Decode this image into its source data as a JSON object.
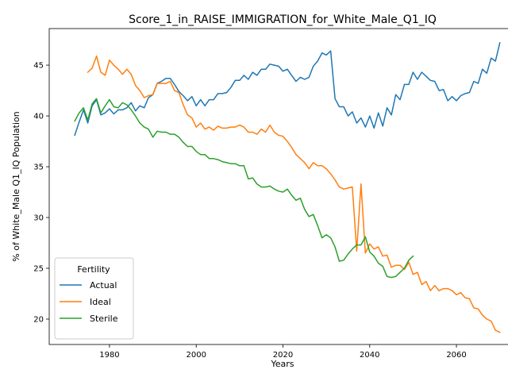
{
  "chart_data": {
    "type": "line",
    "title": "Score_1_in_RAISE_IMMIGRATION_for_White_Male_Q1_IQ",
    "xlabel": "Years",
    "ylabel": "% of White_Male Q1_IQ Population",
    "xlim": [
      1966.1,
      2073.9
    ],
    "ylim": [
      17.5,
      48.6
    ],
    "xticks": [
      1980,
      2000,
      2020,
      2040,
      2060
    ],
    "yticks": [
      20,
      25,
      30,
      35,
      40,
      45
    ],
    "grid": false,
    "legend": {
      "title": "Fertility",
      "placement": "lower-left"
    },
    "series": [
      {
        "name": "Actual",
        "color": "#1f77b4",
        "x": [
          1972,
          1973,
          1974,
          1975,
          1976,
          1977,
          1978,
          1979,
          1980,
          1981,
          1982,
          1983,
          1984,
          1985,
          1986,
          1987,
          1988,
          1989,
          1990,
          1991,
          1992,
          1993,
          1994,
          1995,
          1996,
          1997,
          1998,
          1999,
          2000,
          2001,
          2002,
          2003,
          2004,
          2005,
          2006,
          2007,
          2008,
          2009,
          2010,
          2011,
          2012,
          2013,
          2014,
          2015,
          2016,
          2017,
          2018,
          2019,
          2020,
          2021,
          2022,
          2023,
          2024,
          2025,
          2026,
          2027,
          2028,
          2029,
          2030,
          2031,
          2032,
          2033,
          2034,
          2035,
          2036,
          2037,
          2038,
          2039,
          2040,
          2041,
          2042,
          2043,
          2044,
          2045,
          2046,
          2047,
          2048,
          2049,
          2050,
          2051,
          2052,
          2053,
          2054,
          2055,
          2056,
          2057,
          2058,
          2059,
          2060,
          2061,
          2062,
          2063,
          2064,
          2065,
          2066,
          2067,
          2068,
          2069,
          2070
        ],
        "values": [
          38.1,
          39.4,
          40.6,
          39.3,
          41.0,
          41.6,
          40.1,
          40.3,
          40.7,
          40.2,
          40.6,
          40.6,
          40.8,
          41.3,
          40.5,
          41.0,
          40.8,
          41.8,
          42.1,
          43.2,
          43.4,
          43.7,
          43.7,
          43.1,
          42.4,
          42.0,
          41.5,
          41.9,
          41.0,
          41.6,
          41.0,
          41.6,
          41.6,
          42.2,
          42.2,
          42.3,
          42.8,
          43.5,
          43.5,
          44.0,
          43.6,
          44.3,
          44.0,
          44.6,
          44.6,
          45.1,
          45.0,
          44.9,
          44.4,
          44.6,
          44.0,
          43.4,
          43.8,
          43.6,
          43.8,
          44.9,
          45.4,
          46.2,
          46.0,
          46.4,
          41.7,
          40.9,
          40.9,
          40.0,
          40.4,
          39.3,
          39.8,
          38.9,
          40.0,
          38.8,
          40.3,
          39.0,
          40.8,
          40.1,
          42.1,
          41.6,
          43.1,
          43.1,
          44.3,
          43.6,
          44.3,
          43.9,
          43.5,
          43.4,
          42.5,
          42.6,
          41.5,
          41.9,
          41.5,
          42.0,
          42.2,
          42.3,
          43.4,
          43.2,
          44.6,
          44.2,
          45.7,
          45.4,
          47.2
        ]
      },
      {
        "name": "Ideal",
        "color": "#ff7f0e",
        "x": [
          1975,
          1976,
          1977,
          1978,
          1979,
          1980,
          1981,
          1982,
          1983,
          1984,
          1985,
          1986,
          1987,
          1988,
          1989,
          1990,
          1991,
          1992,
          1993,
          1994,
          1995,
          1996,
          1997,
          1998,
          1999,
          2000,
          2001,
          2002,
          2003,
          2004,
          2005,
          2006,
          2007,
          2008,
          2009,
          2010,
          2011,
          2012,
          2013,
          2014,
          2015,
          2016,
          2017,
          2018,
          2019,
          2020,
          2021,
          2022,
          2023,
          2024,
          2025,
          2026,
          2027,
          2028,
          2029,
          2030,
          2031,
          2032,
          2033,
          2034,
          2035,
          2036,
          2037,
          2038,
          2039,
          2040,
          2041,
          2042,
          2043,
          2044,
          2045,
          2046,
          2047,
          2048,
          2049,
          2050,
          2051,
          2052,
          2053,
          2054,
          2055,
          2056,
          2057,
          2058,
          2059,
          2060,
          2061,
          2062,
          2063,
          2064,
          2065,
          2066,
          2067,
          2068,
          2069,
          2070
        ],
        "values": [
          44.3,
          44.7,
          45.9,
          44.3,
          44.0,
          45.5,
          45.0,
          44.6,
          44.1,
          44.6,
          44.1,
          43.0,
          42.5,
          41.8,
          42.0,
          42.1,
          43.2,
          43.2,
          43.2,
          43.4,
          42.5,
          42.3,
          41.1,
          40.1,
          39.8,
          38.9,
          39.3,
          38.7,
          38.9,
          38.6,
          39.0,
          38.8,
          38.8,
          38.9,
          38.9,
          39.1,
          38.9,
          38.4,
          38.4,
          38.2,
          38.7,
          38.4,
          39.1,
          38.4,
          38.1,
          38.0,
          37.5,
          36.9,
          36.2,
          35.8,
          35.4,
          34.8,
          35.4,
          35.1,
          35.1,
          34.8,
          34.3,
          33.7,
          33.0,
          32.8,
          32.9,
          33.0,
          26.7,
          33.3,
          26.5,
          27.4,
          26.9,
          27.1,
          26.2,
          26.3,
          25.1,
          25.3,
          25.3,
          24.9,
          25.6,
          24.4,
          24.6,
          23.4,
          23.7,
          22.8,
          23.3,
          22.8,
          23.0,
          23.0,
          22.8,
          22.4,
          22.6,
          22.1,
          22.0,
          21.1,
          21.0,
          20.4,
          20.0,
          19.8,
          18.9,
          18.7
        ]
      },
      {
        "name": "Sterile",
        "color": "#2ca02c",
        "x": [
          1972,
          1973,
          1974,
          1975,
          1976,
          1977,
          1978,
          1979,
          1980,
          1981,
          1982,
          1983,
          1984,
          1985,
          1986,
          1987,
          1988,
          1989,
          1990,
          1991,
          1992,
          1993,
          1994,
          1995,
          1996,
          1997,
          1998,
          1999,
          2000,
          2001,
          2002,
          2003,
          2004,
          2005,
          2006,
          2007,
          2008,
          2009,
          2010,
          2011,
          2012,
          2013,
          2014,
          2015,
          2016,
          2017,
          2018,
          2019,
          2020,
          2021,
          2022,
          2023,
          2024,
          2025,
          2026,
          2027,
          2028,
          2029,
          2030,
          2031,
          2032,
          2033,
          2034,
          2035,
          2036,
          2037,
          2038,
          2039,
          2040,
          2041,
          2042,
          2043,
          2044,
          2045,
          2046,
          2047,
          2048,
          2049,
          2050
        ],
        "values": [
          39.5,
          40.3,
          40.8,
          39.6,
          41.2,
          41.7,
          40.3,
          41.0,
          41.6,
          40.9,
          40.8,
          41.3,
          41.1,
          40.6,
          40.0,
          39.3,
          38.9,
          38.7,
          37.9,
          38.5,
          38.4,
          38.4,
          38.2,
          38.2,
          37.9,
          37.4,
          37.0,
          37.0,
          36.5,
          36.2,
          36.2,
          35.8,
          35.8,
          35.7,
          35.5,
          35.4,
          35.3,
          35.3,
          35.1,
          35.1,
          33.8,
          33.9,
          33.3,
          33.0,
          33.0,
          33.1,
          32.8,
          32.6,
          32.5,
          32.8,
          32.2,
          31.7,
          31.9,
          30.8,
          30.1,
          30.3,
          29.2,
          28.0,
          28.3,
          28.0,
          27.1,
          25.7,
          25.8,
          26.4,
          26.9,
          27.3,
          27.3,
          28.1,
          26.6,
          26.2,
          25.5,
          25.2,
          24.2,
          24.1,
          24.2,
          24.6,
          25.0,
          25.8,
          26.2
        ]
      }
    ]
  }
}
